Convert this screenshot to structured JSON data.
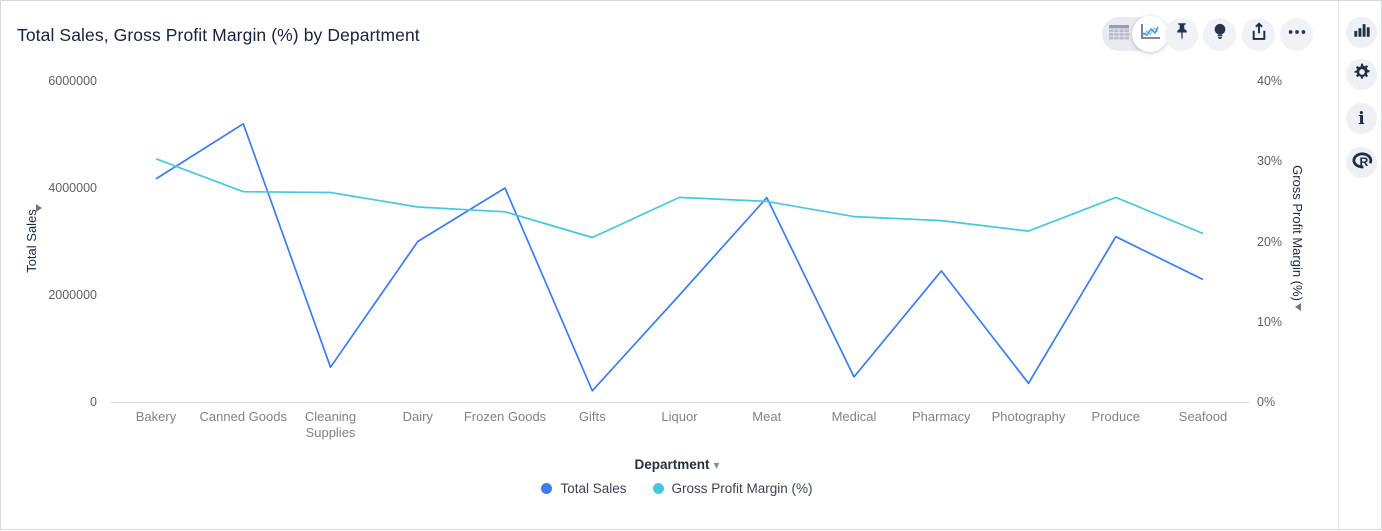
{
  "header": {
    "title": "Total Sales, Gross Profit Margin (%) by Department"
  },
  "toolbar": {
    "view_toggle": {
      "options": [
        {
          "icon": "table-view-icon",
          "selected": false
        },
        {
          "icon": "line-chart-view-icon",
          "selected": true
        }
      ]
    },
    "buttons": [
      {
        "icon": "pin-icon"
      },
      {
        "icon": "lightbulb-icon"
      },
      {
        "icon": "export-icon"
      },
      {
        "icon": "ellipsis-icon"
      }
    ]
  },
  "side_rail": {
    "icons": [
      "bar-chart-icon",
      "gear-icon",
      "info-icon",
      "r-logo-icon"
    ]
  },
  "x_axis_control": {
    "label": "Department",
    "caret": "▾"
  },
  "chart_data": {
    "type": "line",
    "title": "Total Sales, Gross Profit Margin (%) by Department",
    "grid": false,
    "legend_position": "bottom",
    "categories": [
      "Bakery",
      "Canned Goods",
      "Cleaning Supplies",
      "Dairy",
      "Frozen Goods",
      "Gifts",
      "Liquor",
      "Meat",
      "Medical",
      "Pharmacy",
      "Photography",
      "Produce",
      "Seafood"
    ],
    "series": [
      {
        "name": "Total Sales",
        "axis": "left",
        "color": "#3b7cf2",
        "values": [
          4170000,
          5200000,
          650000,
          3000000,
          4000000,
          210000,
          2000000,
          3820000,
          470000,
          2450000,
          350000,
          3090000,
          2290000
        ]
      },
      {
        "name": "Gross Profit Margin (%)",
        "axis": "right",
        "color": "#47c8e0",
        "values": [
          30.3,
          26.2,
          26.1,
          24.3,
          23.7,
          20.5,
          25.5,
          25.0,
          23.1,
          22.6,
          21.3,
          25.5,
          21.0
        ]
      }
    ],
    "left_axis": {
      "label": "Total Sales",
      "min": 0,
      "max": 6000000,
      "ticks": [
        6000000,
        4000000,
        2000000,
        0
      ]
    },
    "right_axis": {
      "label": "Gross Profit Margin (%)",
      "min": 0,
      "max": 40,
      "ticks": [
        40,
        30,
        20,
        10,
        0
      ],
      "suffix": "%"
    },
    "x_axis": {
      "label": "Department"
    }
  }
}
